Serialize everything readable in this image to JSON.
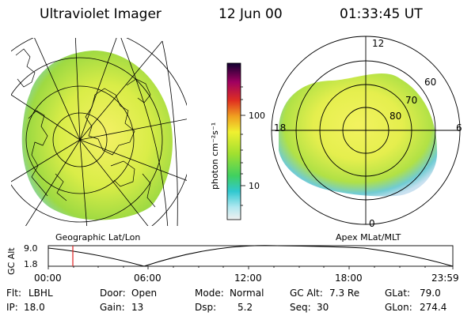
{
  "header": {
    "instrument": "Ultraviolet Imager",
    "date": "12 Jun 00",
    "time": "01:33:45 UT"
  },
  "left_panel": {
    "caption": "Geographic Lat/Lon"
  },
  "right_panel": {
    "caption": "Apex MLat/MLT",
    "mlt_labels": {
      "top": "12",
      "left": "18",
      "right": "6",
      "bottom": "0"
    },
    "lat_labels": [
      "60",
      "70",
      "80"
    ]
  },
  "colorbar": {
    "unit_label": "photon cm⁻²s⁻¹",
    "ticks": [
      "100",
      "10"
    ]
  },
  "timeline": {
    "y_label": "GC Alt",
    "y_ticks": [
      "9.0",
      "1.8"
    ],
    "x_ticks": [
      "00:00",
      "06:00",
      "12:00",
      "18:00",
      "23:59"
    ],
    "marker_color": "#e02020"
  },
  "status": {
    "flt_label": "Flt:",
    "flt_value": "LBHL",
    "ip_label": "IP:",
    "ip_value": "18.0",
    "door_label": "Door:",
    "door_value": "Open",
    "gain_label": "Gain:",
    "gain_value": "13",
    "mode_label": "Mode:",
    "mode_value": "Normal",
    "dsp_label": "Dsp:",
    "dsp_value": "5.2",
    "gcalt_label": "GC Alt:",
    "gcalt_value": "7.3 Re",
    "seq_label": "Seq:",
    "seq_value": "30",
    "glat_label": "GLat:",
    "glat_value": "79.0",
    "glon_label": "GLon:",
    "glon_value": "274.4"
  }
}
